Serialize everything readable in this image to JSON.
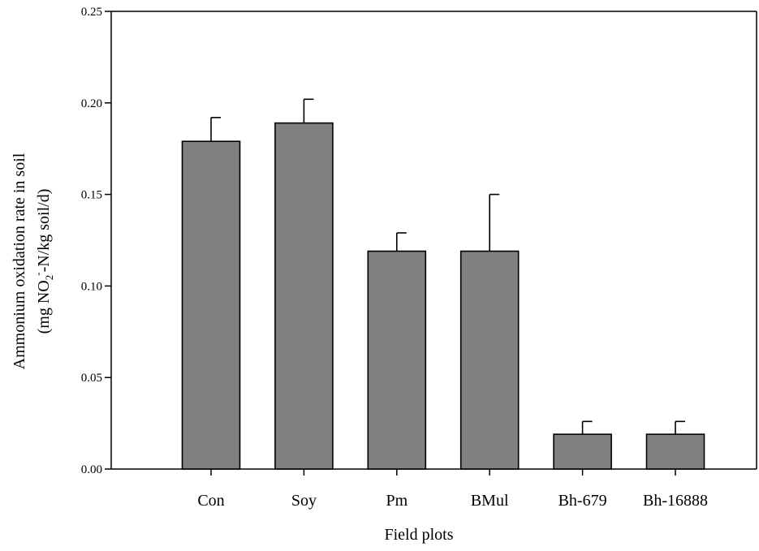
{
  "chart_data": {
    "type": "bar",
    "title": "",
    "xlabel": "Field plots",
    "ylabel": {
      "line1": "Ammonium oxidation rate in soil",
      "line2_pre": "(mg NO",
      "line2_sub": "2",
      "line2_sup": "-",
      "line2_post": "-N/kg soil/d)"
    },
    "categories": [
      "Con",
      "Soy",
      "Pm",
      "BMul",
      "Bh-679",
      "Bh-16888"
    ],
    "values": [
      0.179,
      0.189,
      0.119,
      0.119,
      0.019,
      0.019
    ],
    "errors": [
      0.013,
      0.013,
      0.01,
      0.031,
      0.007,
      0.007
    ],
    "ylim": [
      0,
      0.25
    ],
    "yticks": [
      "0.00",
      "0.05",
      "0.10",
      "0.15",
      "0.20",
      "0.25"
    ],
    "grid": false,
    "bar_color": "#808080",
    "edge_color": "#000000"
  }
}
